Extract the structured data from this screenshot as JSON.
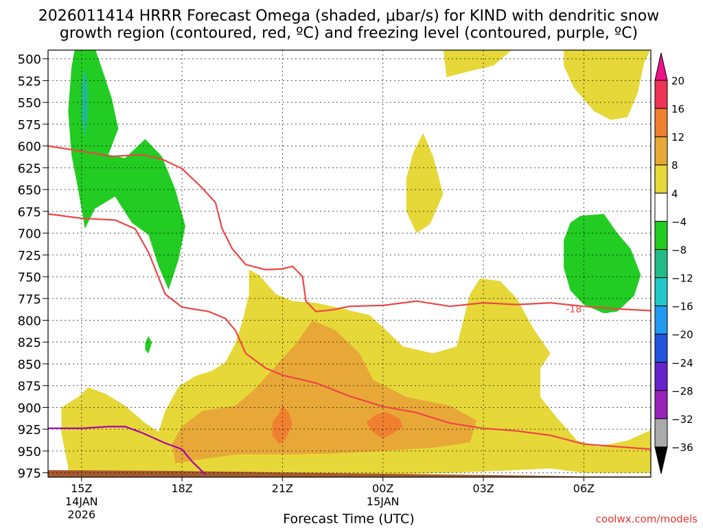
{
  "title_line1": "2026011414 HRRR Forecast Omega (shaded, μbar/s) for KIND with dendritic snow",
  "title_line2": "growth region (contoured, red, ºC) and freezing level (contoured, purple, ºC)",
  "x_axis_label": "Forecast Time (UTC)",
  "watermark": "coolwx.com/models",
  "chart_data": {
    "type": "heatmap",
    "title": "2026011414 HRRR Forecast Omega (shaded, μbar/s) for KIND with dendritic snow growth region (contoured, red, ºC) and freezing level (contoured, purple, ºC)",
    "xlabel": "Forecast Time (UTC)",
    "y_ticks": [
      500,
      525,
      550,
      575,
      600,
      625,
      650,
      675,
      700,
      725,
      750,
      775,
      800,
      825,
      850,
      875,
      900,
      925,
      950,
      975
    ],
    "ylim": [
      980,
      490
    ],
    "x_ticks": [
      {
        "hour": 15,
        "label": "15Z",
        "sub1": "14JAN",
        "sub2": "2026"
      },
      {
        "hour": 18,
        "label": "18Z",
        "sub1": "",
        "sub2": ""
      },
      {
        "hour": 21,
        "label": "21Z",
        "sub1": "",
        "sub2": ""
      },
      {
        "hour": 24,
        "label": "00Z",
        "sub1": "15JAN",
        "sub2": ""
      },
      {
        "hour": 27,
        "label": "03Z",
        "sub1": "",
        "sub2": ""
      },
      {
        "hour": 30,
        "label": "06Z",
        "sub1": "",
        "sub2": ""
      }
    ],
    "xlim": [
      14.0,
      32.0
    ],
    "grid": true,
    "colorbar": {
      "labels": [
        "20",
        "16",
        "12",
        "8",
        "4",
        "−4",
        "−8",
        "−12",
        "−16",
        "−20",
        "−24",
        "−28",
        "−32",
        "−36"
      ],
      "colors": [
        "#ee3355",
        "#f08030",
        "#e8a838",
        "#e6d838",
        "#ffffff",
        "#22cc22",
        "#22bb88",
        "#22c8c8",
        "#2299ee",
        "#2255dd",
        "#6622cc",
        "#9922bb",
        "#aaaaaa"
      ],
      "top_arrow_color": "#ee1188",
      "bottom_arrow_color": "#000000"
    },
    "contour_annotation": "-18",
    "series": [
      {
        "kind": "dgz_top_-18C",
        "color": "#ee4444",
        "points": [
          [
            14.0,
            600
          ],
          [
            15.0,
            606
          ],
          [
            15.9,
            612
          ],
          [
            16.8,
            610
          ],
          [
            17.4,
            615
          ],
          [
            18.0,
            626
          ],
          [
            18.6,
            648
          ],
          [
            19.0,
            665
          ],
          [
            19.2,
            695
          ],
          [
            19.5,
            718
          ],
          [
            19.9,
            736
          ],
          [
            20.5,
            742
          ],
          [
            21.0,
            741
          ],
          [
            21.3,
            738
          ],
          [
            21.6,
            750
          ],
          [
            21.7,
            778
          ],
          [
            22.0,
            790
          ],
          [
            22.5,
            788
          ],
          [
            23.0,
            784
          ],
          [
            24.0,
            783
          ],
          [
            25.0,
            778
          ],
          [
            26.0,
            784
          ],
          [
            27.0,
            780
          ],
          [
            28.0,
            782
          ],
          [
            29.0,
            780
          ],
          [
            30.0,
            784
          ],
          [
            31.0,
            787
          ],
          [
            32.0,
            789
          ]
        ]
      },
      {
        "kind": "dgz_bottom_-12C",
        "color": "#ee4444",
        "points": [
          [
            14.0,
            678
          ],
          [
            15.0,
            683
          ],
          [
            16.0,
            685
          ],
          [
            16.6,
            695
          ],
          [
            17.0,
            722
          ],
          [
            17.5,
            770
          ],
          [
            18.0,
            785
          ],
          [
            18.8,
            790
          ],
          [
            19.3,
            798
          ],
          [
            19.6,
            812
          ],
          [
            19.9,
            838
          ],
          [
            20.5,
            855
          ],
          [
            21.0,
            863
          ],
          [
            22.0,
            872
          ],
          [
            23.0,
            887
          ],
          [
            24.0,
            899
          ],
          [
            25.0,
            906
          ],
          [
            26.0,
            918
          ],
          [
            27.0,
            924
          ],
          [
            28.0,
            927
          ],
          [
            29.0,
            932
          ],
          [
            30.0,
            942
          ],
          [
            31.0,
            945
          ],
          [
            32.0,
            948
          ]
        ]
      },
      {
        "kind": "freezing_level_0C",
        "color": "#aa00aa",
        "points": [
          [
            14.0,
            924
          ],
          [
            15.0,
            924
          ],
          [
            15.8,
            922
          ],
          [
            16.3,
            922
          ],
          [
            16.8,
            929
          ],
          [
            17.5,
            941
          ],
          [
            18.0,
            948
          ],
          [
            18.3,
            962
          ],
          [
            18.7,
            977
          ]
        ]
      }
    ],
    "regions": [
      {
        "value": "4 to 8",
        "color": "#e6d838",
        "points": [
          [
            14.6,
            968
          ],
          [
            14.4,
            930
          ],
          [
            14.4,
            900
          ],
          [
            14.9,
            888
          ],
          [
            15.2,
            877
          ],
          [
            15.7,
            884
          ],
          [
            16.3,
            898
          ],
          [
            16.9,
            918
          ],
          [
            17.3,
            928
          ],
          [
            17.5,
            904
          ],
          [
            17.9,
            876
          ],
          [
            18.4,
            864
          ],
          [
            18.9,
            858
          ],
          [
            19.3,
            848
          ],
          [
            19.6,
            826
          ],
          [
            19.8,
            802
          ],
          [
            20.0,
            770
          ],
          [
            20.0,
            742
          ],
          [
            20.3,
            748
          ],
          [
            20.8,
            770
          ],
          [
            21.3,
            778
          ],
          [
            22.0,
            780
          ],
          [
            22.6,
            785
          ],
          [
            23.6,
            794
          ],
          [
            24.0,
            808
          ],
          [
            24.6,
            830
          ],
          [
            25.5,
            838
          ],
          [
            26.2,
            830
          ],
          [
            26.6,
            770
          ],
          [
            26.9,
            752
          ],
          [
            27.5,
            755
          ],
          [
            28.0,
            775
          ],
          [
            28.5,
            810
          ],
          [
            29.0,
            838
          ],
          [
            28.7,
            855
          ],
          [
            28.7,
            888
          ],
          [
            29.2,
            912
          ],
          [
            29.8,
            938
          ],
          [
            30.4,
            945
          ],
          [
            31.3,
            938
          ],
          [
            32.0,
            926
          ],
          [
            32.0,
            975
          ],
          [
            30.0,
            975
          ],
          [
            29.0,
            970
          ],
          [
            28.0,
            972
          ],
          [
            26.0,
            975
          ],
          [
            23.0,
            978
          ],
          [
            21.0,
            980
          ],
          [
            18.0,
            978
          ],
          [
            14.6,
            978
          ]
        ]
      },
      {
        "value": "4 to 8",
        "color": "#e6d838",
        "points": [
          [
            24.7,
            637
          ],
          [
            24.9,
            608
          ],
          [
            25.2,
            585
          ],
          [
            25.5,
            612
          ],
          [
            25.8,
            655
          ],
          [
            25.4,
            690
          ],
          [
            25.0,
            700
          ],
          [
            24.7,
            675
          ]
        ]
      },
      {
        "value": "4 to 8",
        "color": "#e6d838",
        "points": [
          [
            25.8,
            488
          ],
          [
            27.9,
            488
          ],
          [
            27.3,
            508
          ],
          [
            26.6,
            514
          ],
          [
            25.9,
            521
          ]
        ]
      },
      {
        "value": "4 to 8",
        "color": "#e6d838",
        "points": [
          [
            29.4,
            488
          ],
          [
            32.0,
            488
          ],
          [
            31.8,
            505
          ],
          [
            31.6,
            540
          ],
          [
            31.3,
            567
          ],
          [
            30.8,
            570
          ],
          [
            30.3,
            560
          ],
          [
            29.7,
            533
          ],
          [
            29.4,
            508
          ]
        ]
      },
      {
        "value": "8 to 12",
        "color": "#e8a838",
        "points": [
          [
            17.7,
            942
          ],
          [
            18.0,
            922
          ],
          [
            18.6,
            904
          ],
          [
            19.6,
            898
          ],
          [
            20.2,
            878
          ],
          [
            20.9,
            848
          ],
          [
            21.4,
            827
          ],
          [
            21.9,
            800
          ],
          [
            22.6,
            812
          ],
          [
            23.3,
            838
          ],
          [
            23.7,
            868
          ],
          [
            24.7,
            888
          ],
          [
            26.0,
            898
          ],
          [
            26.8,
            915
          ],
          [
            26.6,
            940
          ],
          [
            25.6,
            946
          ],
          [
            24.0,
            950
          ],
          [
            22.4,
            953
          ],
          [
            21.0,
            954
          ],
          [
            19.6,
            954
          ],
          [
            18.5,
            960
          ],
          [
            17.8,
            964
          ]
        ]
      },
      {
        "value": "12 to 16",
        "color": "#f08030",
        "points": [
          [
            20.7,
            917
          ],
          [
            20.9,
            907
          ],
          [
            21.0,
            897
          ],
          [
            21.2,
            907
          ],
          [
            21.3,
            920
          ],
          [
            21.1,
            936
          ],
          [
            20.9,
            942
          ],
          [
            20.7,
            932
          ]
        ]
      },
      {
        "value": "12 to 16",
        "color": "#f08030",
        "points": [
          [
            23.5,
            917
          ],
          [
            23.8,
            908
          ],
          [
            24.1,
            905
          ],
          [
            24.5,
            913
          ],
          [
            24.6,
            922
          ],
          [
            24.3,
            930
          ],
          [
            24.0,
            936
          ],
          [
            23.7,
            928
          ]
        ]
      },
      {
        "value": "-4 to -8",
        "color": "#22cc22",
        "points": [
          [
            14.8,
            488
          ],
          [
            15.4,
            488
          ],
          [
            15.6,
            510
          ],
          [
            15.9,
            545
          ],
          [
            16.1,
            580
          ],
          [
            15.8,
            610
          ],
          [
            16.3,
            614
          ],
          [
            16.9,
            592
          ],
          [
            17.4,
            612
          ],
          [
            17.8,
            650
          ],
          [
            18.1,
            692
          ],
          [
            17.9,
            730
          ],
          [
            17.6,
            765
          ],
          [
            17.3,
            738
          ],
          [
            17.0,
            702
          ],
          [
            16.5,
            688
          ],
          [
            16.0,
            658
          ],
          [
            15.4,
            672
          ],
          [
            15.1,
            695
          ],
          [
            14.9,
            650
          ],
          [
            14.7,
            610
          ],
          [
            14.6,
            560
          ],
          [
            14.7,
            510
          ]
        ]
      },
      {
        "value": "-4 to -8",
        "color": "#22cc22",
        "points": [
          [
            16.9,
            826
          ],
          [
            17.0,
            818
          ],
          [
            17.1,
            826
          ],
          [
            17.0,
            838
          ],
          [
            16.9,
            834
          ]
        ]
      },
      {
        "value": "-4 to -8",
        "color": "#22cc22",
        "points": [
          [
            29.4,
            708
          ],
          [
            29.6,
            688
          ],
          [
            29.9,
            680
          ],
          [
            30.6,
            678
          ],
          [
            31.0,
            700
          ],
          [
            31.4,
            718
          ],
          [
            31.7,
            748
          ],
          [
            31.5,
            772
          ],
          [
            31.0,
            790
          ],
          [
            30.6,
            792
          ],
          [
            30.0,
            782
          ],
          [
            29.6,
            766
          ],
          [
            29.4,
            740
          ]
        ]
      },
      {
        "value": "-8 to -12",
        "color": "#22bb88",
        "points": [
          [
            15.0,
            530
          ],
          [
            15.1,
            510
          ],
          [
            15.2,
            535
          ],
          [
            15.2,
            565
          ],
          [
            15.1,
            590
          ],
          [
            15.0,
            570
          ]
        ]
      },
      {
        "value": "surface",
        "color": "#a65a2e",
        "points": [
          [
            14.0,
            972
          ],
          [
            18.0,
            973
          ],
          [
            22.0,
            975
          ],
          [
            26.0,
            977
          ],
          [
            30.0,
            979
          ],
          [
            32.0,
            979
          ],
          [
            32.0,
            985
          ],
          [
            14.0,
            985
          ]
        ]
      }
    ]
  }
}
